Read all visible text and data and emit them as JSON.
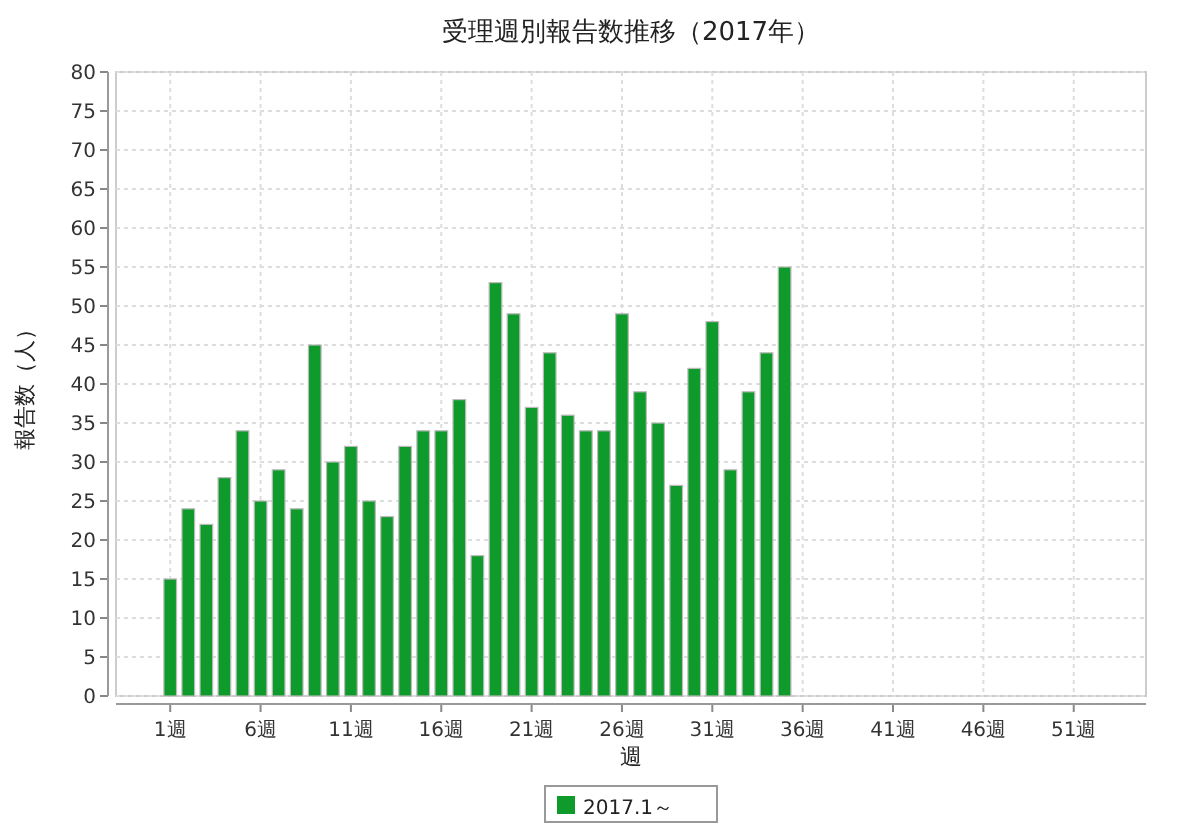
{
  "chart_data": {
    "type": "bar",
    "title": "受理週別報告数推移（2017年）",
    "xlabel": "週",
    "ylabel": "報告数（人）",
    "x": [
      1,
      2,
      3,
      4,
      5,
      6,
      7,
      8,
      9,
      10,
      11,
      12,
      13,
      14,
      15,
      16,
      17,
      18,
      19,
      20,
      21,
      22,
      23,
      24,
      25,
      26,
      27,
      28,
      29,
      30,
      31,
      32,
      33,
      34,
      35
    ],
    "series": [
      {
        "name": "2017.1～",
        "color": "#0f9a2c",
        "values": [
          15,
          24,
          22,
          28,
          34,
          25,
          29,
          24,
          45,
          30,
          32,
          25,
          23,
          32,
          34,
          34,
          38,
          18,
          53,
          49,
          37,
          44,
          36,
          34,
          34,
          49,
          39,
          35,
          27,
          42,
          48,
          29,
          39,
          44,
          55
        ]
      }
    ],
    "xlim": [
      -2,
      55
    ],
    "xticks": [
      {
        "value": 1,
        "label": "1週"
      },
      {
        "value": 6,
        "label": "6週"
      },
      {
        "value": 11,
        "label": "11週"
      },
      {
        "value": 16,
        "label": "16週"
      },
      {
        "value": 21,
        "label": "21週"
      },
      {
        "value": 26,
        "label": "26週"
      },
      {
        "value": 31,
        "label": "31週"
      },
      {
        "value": 36,
        "label": "36週"
      },
      {
        "value": 41,
        "label": "41週"
      },
      {
        "value": 46,
        "label": "46週"
      },
      {
        "value": 51,
        "label": "51週"
      }
    ],
    "ylim": [
      0,
      80
    ],
    "yticks": [
      0,
      5,
      10,
      15,
      20,
      25,
      30,
      35,
      40,
      45,
      50,
      55,
      60,
      65,
      70,
      75,
      80
    ],
    "grid": true,
    "legend": "bottom"
  }
}
